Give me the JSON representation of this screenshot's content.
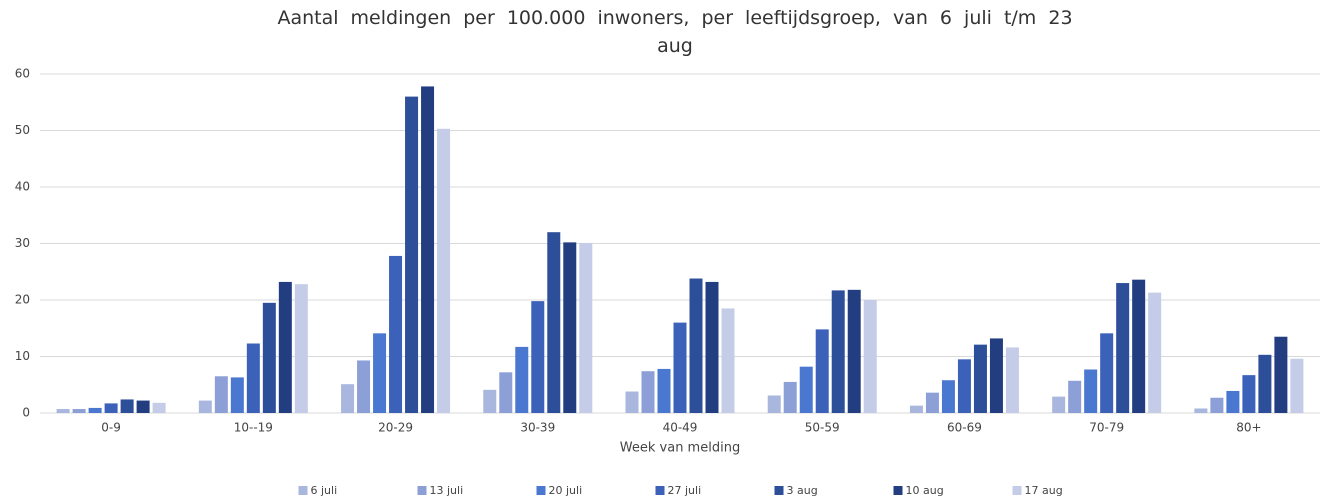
{
  "chart_data": {
    "type": "bar",
    "title": "Aantal meldingen per 100.000 inwoners, per leeftijdsgroep, van 6 juli t/m 23 aug",
    "x_label": "Week van melding",
    "categories": [
      "0-9",
      "10--19",
      "20-29",
      "30-39",
      "40-49",
      "50-59",
      "60-69",
      "70-79",
      "80+"
    ],
    "series": [
      {
        "name": "6 juli",
        "color": "#a9b7df",
        "values": [
          0.7,
          2.2,
          5.1,
          4.1,
          3.8,
          3.1,
          1.3,
          2.9,
          0.8
        ]
      },
      {
        "name": "13 juli",
        "color": "#8c9fd6",
        "values": [
          0.7,
          6.5,
          9.3,
          7.2,
          7.4,
          5.5,
          3.6,
          5.7,
          2.7
        ]
      },
      {
        "name": "20 juli",
        "color": "#4a78d0",
        "values": [
          0.9,
          6.3,
          14.1,
          11.7,
          7.8,
          8.2,
          5.8,
          7.7,
          3.9
        ]
      },
      {
        "name": "27 juli",
        "color": "#3b62b8",
        "values": [
          1.7,
          12.3,
          27.8,
          19.8,
          16.0,
          14.8,
          9.5,
          14.1,
          6.7
        ]
      },
      {
        "name": "3 aug",
        "color": "#2d4f99",
        "values": [
          2.4,
          19.5,
          56.0,
          32.0,
          23.8,
          21.7,
          12.1,
          23.0,
          10.3
        ]
      },
      {
        "name": "10 aug",
        "color": "#233e80",
        "values": [
          2.2,
          23.2,
          57.8,
          30.2,
          23.2,
          21.8,
          13.2,
          23.6,
          13.5
        ]
      },
      {
        "name": "17 aug",
        "color": "#c4cce7",
        "values": [
          1.8,
          22.8,
          50.3,
          30.1,
          18.5,
          20.0,
          11.6,
          21.3,
          9.6
        ]
      }
    ],
    "ylim": [
      0,
      60
    ],
    "yticks": [
      0,
      10,
      20,
      30,
      40,
      50,
      60
    ],
    "grid": true
  }
}
